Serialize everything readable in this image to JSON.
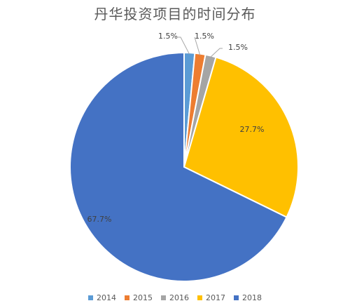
{
  "chart_data": {
    "type": "pie",
    "title": "丹华投资项目的时间分布",
    "categories": [
      "2014",
      "2015",
      "2016",
      "2017",
      "2018"
    ],
    "values": [
      1.5,
      1.5,
      1.5,
      27.7,
      67.7
    ],
    "labels": [
      "1.5%",
      "1.5%",
      "1.5%",
      "27.7%",
      "67.7%"
    ],
    "colors": [
      "#5B9BD5",
      "#ED7D31",
      "#A5A5A5",
      "#FFC000",
      "#4472C4"
    ],
    "legend_position": "bottom"
  }
}
